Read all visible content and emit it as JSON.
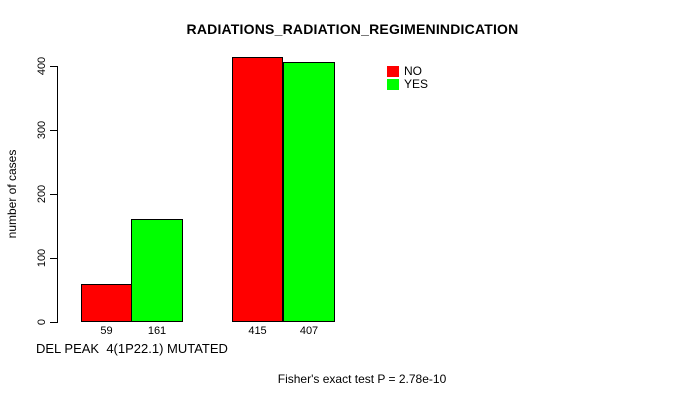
{
  "chart_data": {
    "type": "bar",
    "title": "RADIATIONS_RADIATION_REGIMENINDICATION",
    "ylabel": "number of cases",
    "xlabel": "DEL PEAK  4(1P22.1) MUTATED",
    "annotation": "Fisher's exact test P = 2.78e-10",
    "categories": [
      "",
      ""
    ],
    "series": [
      {
        "name": "NO",
        "color": "#FF0000",
        "values": [
          59,
          415
        ]
      },
      {
        "name": "YES",
        "color": "#00FF00",
        "values": [
          161,
          407
        ]
      }
    ],
    "bar_labels": [
      "59",
      "161",
      "415",
      "407"
    ],
    "ylim": [
      0,
      400
    ],
    "yticks": [
      "0",
      "100",
      "200",
      "300",
      "400"
    ],
    "grid": false,
    "background": "#FFFFFF",
    "legend": {
      "position": "top-right",
      "entries": [
        {
          "label": "NO",
          "color": "#FF0000"
        },
        {
          "label": "YES",
          "color": "#00FF00"
        }
      ]
    }
  }
}
